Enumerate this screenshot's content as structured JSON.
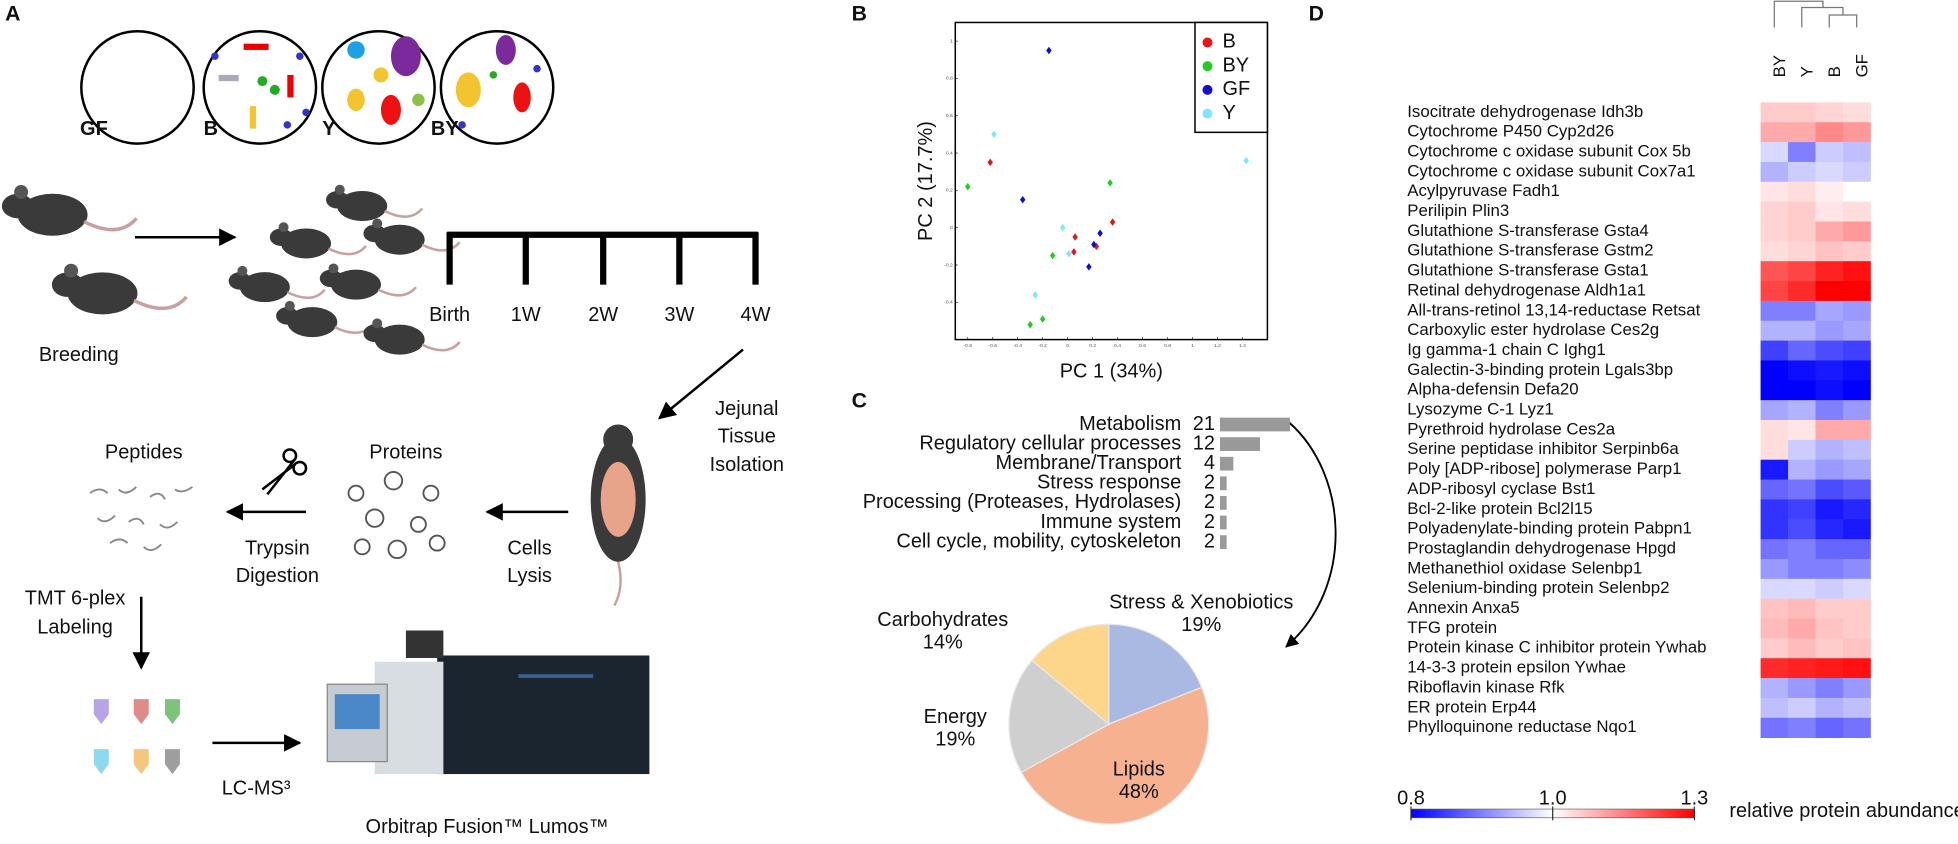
{
  "panel_labels": [
    "A",
    "B",
    "C",
    "D"
  ],
  "panel_a": {
    "groups": [
      "GF",
      "B",
      "Y",
      "BY"
    ],
    "timeline": [
      "Birth",
      "1W",
      "2W",
      "3W",
      "4W"
    ],
    "breeding": "Breeding",
    "isolation": [
      "Jejunal",
      "Tissue",
      "Isolation"
    ],
    "proteins": "Proteins",
    "peptides": "Peptides",
    "lysis": [
      "Cells",
      "Lysis"
    ],
    "digestion": [
      "Trypsin",
      "Digestion"
    ],
    "labeling": [
      "TMT 6-plex",
      "Labeling"
    ],
    "lcms": "LC-MS³",
    "instrument": "Orbitrap Fusion™ Lumos™"
  },
  "chart_data": [
    {
      "type": "scatter",
      "xlabel": "PC 1 (34%)",
      "ylabel": "PC 2 (17.7%)",
      "xlim": [
        -0.9,
        1.6
      ],
      "ylim": [
        -0.6,
        1.1
      ],
      "xticks": [
        -0.8,
        -0.6,
        -0.4,
        -0.2,
        0,
        0.2,
        0.4,
        0.6,
        0.8,
        1,
        1.2,
        1.4
      ],
      "yticks": [
        -0.4,
        -0.2,
        0,
        0.2,
        0.4,
        0.6,
        0.8,
        1
      ],
      "legend": "upper right",
      "series": [
        {
          "name": "B",
          "color": "#e8151a",
          "x": [
            -0.62,
            0.06,
            0.05,
            0.23,
            0.36
          ],
          "values": [
            0.35,
            -0.05,
            -0.13,
            -0.1,
            0.03
          ]
        },
        {
          "name": "BY",
          "color": "#22cc22",
          "x": [
            -0.8,
            0.34,
            -0.12,
            -0.2,
            -0.3
          ],
          "values": [
            0.22,
            0.24,
            -0.15,
            -0.49,
            -0.52
          ]
        },
        {
          "name": "GF",
          "color": "#1010cc",
          "x": [
            -0.15,
            -0.36,
            0.26,
            0.21,
            0.17
          ],
          "values": [
            0.95,
            0.15,
            -0.03,
            -0.09,
            -0.21
          ]
        },
        {
          "name": "Y",
          "color": "#7fe6ff",
          "x": [
            -0.59,
            -0.04,
            0.01,
            -0.26,
            1.43
          ],
          "values": [
            0.5,
            0.0,
            -0.14,
            -0.36,
            0.36
          ]
        }
      ]
    },
    {
      "type": "barh",
      "color": "#999999",
      "categories": [
        "Metabolism",
        "Regulatory cellular processes",
        "Membrane/Transport",
        "Stress response",
        "Processing (Proteases, Hydrolases)",
        "Immune system",
        "Cell cycle, mobility, cytoskeleton"
      ],
      "values": [
        21,
        12,
        4,
        2,
        2,
        2,
        2
      ]
    },
    {
      "type": "pie",
      "categories": [
        "Stress & Xenobiotics",
        "Lipids",
        "Energy",
        "Carbohydrates"
      ],
      "values": [
        19,
        48,
        19,
        14
      ],
      "value_labels": [
        "19%",
        "48%",
        "19%",
        "14%"
      ],
      "colors": [
        "#aab9e2",
        "#f6b290",
        "#cfcfcf",
        "#fdd68c"
      ]
    },
    {
      "type": "heatmap",
      "columns": [
        "BY",
        "Y",
        "B",
        "GF"
      ],
      "rows": [
        "Isocitrate dehydrogenase Idh3b",
        "Cytochrome P450 Cyp2d26",
        "Cytochrome c oxidase subunit Cox 5b",
        "Cytochrome c oxidase subunit Cox7a1",
        "Acylpyruvase Fadh1",
        "Perilipin Plin3",
        "Glutathione S-transferase Gsta4",
        "Glutathione S-transferase Gstm2",
        "Glutathione S-transferase Gsta1",
        "Retinal dehydrogenase  Aldh1a1",
        "All-trans-retinol 13,14-reductase Retsat",
        "Carboxylic ester hydrolase Ces2g",
        "Ig gamma-1 chain C Ighg1",
        "Galectin-3-binding protein Lgals3bp",
        "Alpha-defensin Defa20",
        "Lysozyme C-1 Lyz1",
        "Pyrethroid hydrolase Ces2a",
        "Serine peptidase inhibitor Serpinb6a",
        "Poly [ADP-ribose] polymerase Parp1",
        "ADP-ribosyl cyclase Bst1",
        "Bcl-2-like protein Bcl2l15",
        "Polyadenylate-binding protein Pabpn1",
        "Prostaglandin dehydrogenase Hpgd",
        "Methanethiol oxidase Selenbp1",
        "Selenium-binding protein Selenbp2",
        "Annexin Anxa5",
        "TFG protein",
        "Protein kinase C inhibitor protein Ywhab",
        "14-3-3 protein epsilon Ywhae",
        "Riboflavin kinase Rfk",
        "ER protein Erp44",
        "Phylloquinone reductase Nqo1"
      ],
      "values": [
        [
          1.06,
          1.06,
          1.05,
          1.04
        ],
        [
          1.1,
          1.1,
          1.14,
          1.12
        ],
        [
          0.97,
          0.9,
          0.96,
          0.95
        ],
        [
          0.94,
          0.96,
          0.97,
          0.96
        ],
        [
          1.03,
          1.04,
          1.02,
          1.0
        ],
        [
          1.05,
          1.06,
          1.03,
          1.04
        ],
        [
          1.05,
          1.06,
          1.1,
          1.12
        ],
        [
          1.04,
          1.05,
          1.07,
          1.06
        ],
        [
          1.2,
          1.22,
          1.26,
          1.28
        ],
        [
          1.22,
          1.25,
          1.3,
          1.3
        ],
        [
          0.9,
          0.9,
          0.93,
          0.92
        ],
        [
          0.94,
          0.94,
          0.92,
          0.93
        ],
        [
          0.85,
          0.88,
          0.86,
          0.85
        ],
        [
          0.8,
          0.81,
          0.82,
          0.81
        ],
        [
          0.8,
          0.8,
          0.81,
          0.8
        ],
        [
          0.93,
          0.94,
          0.9,
          0.92
        ],
        [
          1.04,
          1.03,
          1.1,
          1.1
        ],
        [
          1.04,
          0.96,
          0.94,
          0.95
        ],
        [
          0.82,
          0.94,
          0.92,
          0.93
        ],
        [
          0.88,
          0.89,
          0.86,
          0.87
        ],
        [
          0.84,
          0.85,
          0.82,
          0.83
        ],
        [
          0.84,
          0.86,
          0.83,
          0.82
        ],
        [
          0.89,
          0.9,
          0.88,
          0.88
        ],
        [
          0.92,
          0.9,
          0.9,
          0.91
        ],
        [
          0.97,
          0.97,
          0.96,
          0.97
        ],
        [
          1.07,
          1.08,
          1.06,
          1.06
        ],
        [
          1.08,
          1.1,
          1.07,
          1.06
        ],
        [
          1.06,
          1.08,
          1.06,
          1.07
        ],
        [
          1.25,
          1.26,
          1.27,
          1.28
        ],
        [
          0.94,
          0.92,
          0.9,
          0.92
        ],
        [
          0.95,
          0.96,
          0.94,
          0.95
        ],
        [
          0.89,
          0.9,
          0.88,
          0.89
        ]
      ],
      "clim": [
        0.8,
        1.3
      ],
      "cticks": [
        0.8,
        {
          "value": 1.0,
          "label": "1.0"
        },
        1.3
      ],
      "low_color": "#0000ff",
      "high_color": "#ff0000",
      "colorbar_label": "relative protein abundance"
    }
  ]
}
